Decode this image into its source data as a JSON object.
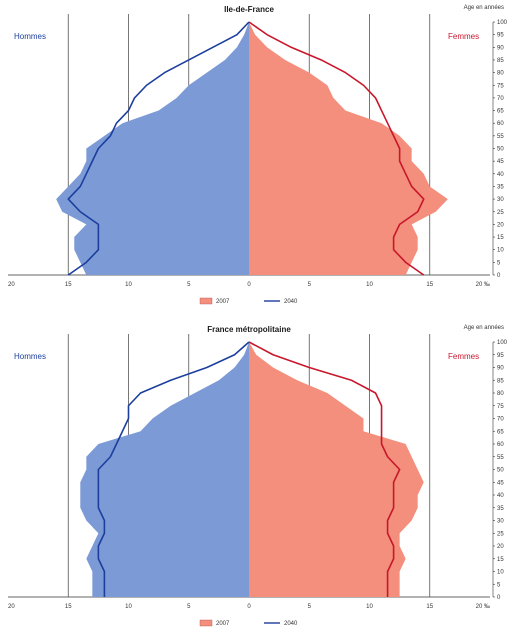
{
  "colors": {
    "men_fill": "#7b9ad6",
    "women_fill": "#f38f7c",
    "men_line": "#1c3f9e",
    "women_line": "#c8172b",
    "grid": "#555555"
  },
  "chart_data": [
    {
      "type": "area",
      "title": "Ile-de-France",
      "left_label": "Hommes",
      "right_label": "Femmes",
      "age_axis_title": "Age en années",
      "x_axis_unit": "‰",
      "xlim": [
        -20,
        20
      ],
      "ylim": [
        0,
        100
      ],
      "x_ticks": [
        "20",
        "15",
        "10",
        "5",
        "0",
        "5",
        "10",
        "15",
        "20 ‰"
      ],
      "y_ticks": [
        0,
        5,
        10,
        15,
        20,
        25,
        30,
        35,
        40,
        45,
        50,
        55,
        60,
        65,
        70,
        75,
        80,
        85,
        90,
        95,
        100
      ],
      "legend": [
        "2007",
        "2040"
      ],
      "age": [
        0,
        5,
        10,
        15,
        20,
        25,
        30,
        35,
        40,
        45,
        50,
        55,
        60,
        65,
        70,
        75,
        80,
        85,
        90,
        95,
        100
      ],
      "series": [
        {
          "name": "2007",
          "sex": "men",
          "values": [
            13.5,
            14.0,
            14.5,
            14.5,
            13.5,
            15.5,
            16.0,
            15.0,
            14.0,
            13.5,
            13.5,
            12.0,
            10.5,
            7.5,
            6.0,
            5.0,
            3.5,
            2.0,
            1.0,
            0.4,
            0
          ]
        },
        {
          "name": "2007",
          "sex": "women",
          "values": [
            13.0,
            13.5,
            14.0,
            14.0,
            13.5,
            15.5,
            16.5,
            15.0,
            14.5,
            13.5,
            13.5,
            12.5,
            11.0,
            8.0,
            7.0,
            6.5,
            5.0,
            3.0,
            1.5,
            0.5,
            0
          ]
        },
        {
          "name": "2040",
          "sex": "men",
          "values": [
            15.0,
            13.5,
            12.5,
            12.5,
            12.5,
            14.0,
            15.0,
            14.0,
            13.5,
            13.0,
            12.5,
            11.5,
            11.0,
            10.0,
            9.5,
            8.5,
            7.0,
            5.0,
            3.0,
            1.0,
            0
          ]
        },
        {
          "name": "2040",
          "sex": "women",
          "values": [
            14.5,
            13.0,
            12.0,
            12.0,
            12.5,
            14.0,
            14.5,
            13.5,
            13.0,
            12.5,
            12.5,
            12.0,
            11.5,
            11.0,
            10.5,
            9.5,
            8.0,
            6.0,
            3.5,
            1.5,
            0
          ]
        }
      ]
    },
    {
      "type": "area",
      "title": "France métropolitaine",
      "left_label": "Hommes",
      "right_label": "Femmes",
      "age_axis_title": "Age en années",
      "x_axis_unit": "‰",
      "xlim": [
        -20,
        20
      ],
      "ylim": [
        0,
        100
      ],
      "x_ticks": [
        "20",
        "15",
        "10",
        "5",
        "0",
        "5",
        "10",
        "15",
        "20 ‰"
      ],
      "y_ticks": [
        0,
        5,
        10,
        15,
        20,
        25,
        30,
        35,
        40,
        45,
        50,
        55,
        60,
        65,
        70,
        75,
        80,
        85,
        90,
        95,
        100
      ],
      "legend": [
        "2007",
        "2040"
      ],
      "age": [
        0,
        5,
        10,
        15,
        20,
        25,
        30,
        35,
        40,
        45,
        50,
        55,
        60,
        65,
        70,
        75,
        80,
        85,
        90,
        95,
        100
      ],
      "series": [
        {
          "name": "2007",
          "sex": "men",
          "values": [
            13.0,
            13.0,
            13.0,
            13.5,
            13.0,
            12.5,
            13.5,
            14.0,
            14.0,
            14.0,
            13.5,
            13.5,
            12.5,
            9.0,
            8.0,
            6.5,
            4.5,
            2.5,
            1.2,
            0.4,
            0
          ]
        },
        {
          "name": "2007",
          "sex": "women",
          "values": [
            12.5,
            12.5,
            12.5,
            13.0,
            12.5,
            12.5,
            13.5,
            14.0,
            14.0,
            14.5,
            14.0,
            13.5,
            13.0,
            9.5,
            9.5,
            8.0,
            6.5,
            4.0,
            2.0,
            0.6,
            0
          ]
        },
        {
          "name": "2040",
          "sex": "men",
          "values": [
            12.0,
            12.0,
            12.0,
            12.5,
            12.5,
            12.0,
            12.0,
            12.5,
            12.5,
            12.5,
            12.5,
            11.5,
            11.0,
            10.5,
            10.0,
            10.0,
            9.0,
            6.5,
            3.5,
            1.2,
            0
          ]
        },
        {
          "name": "2040",
          "sex": "women",
          "values": [
            11.5,
            11.5,
            11.5,
            12.0,
            12.0,
            11.5,
            11.5,
            12.0,
            12.0,
            12.0,
            12.5,
            11.5,
            11.0,
            11.0,
            11.0,
            11.0,
            10.5,
            8.5,
            5.0,
            2.0,
            0
          ]
        }
      ]
    }
  ]
}
